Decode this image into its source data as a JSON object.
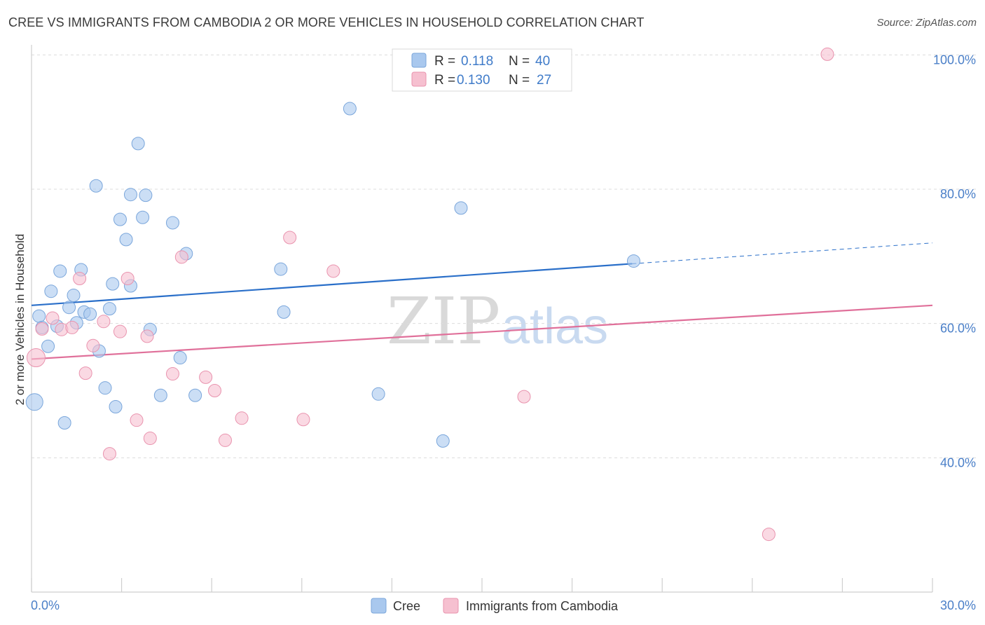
{
  "header": {
    "title": "CREE VS IMMIGRANTS FROM CAMBODIA 2 OR MORE VEHICLES IN HOUSEHOLD CORRELATION CHART",
    "source": "Source: ZipAtlas.com"
  },
  "watermark": {
    "zip": "ZIP",
    "atlas": "atlas"
  },
  "chart_data": {
    "type": "scatter",
    "title": "CREE VS IMMIGRANTS FROM CAMBODIA 2 OR MORE VEHICLES IN HOUSEHOLD CORRELATION CHART",
    "xlabel": "",
    "ylabel": "2 or more Vehicles in Household",
    "xlim": [
      0,
      30
    ],
    "ylim": [
      20,
      101.5
    ],
    "x_tick_labels": [
      {
        "value": 0,
        "label": "0.0%"
      },
      {
        "value": 30,
        "label": "30.0%"
      }
    ],
    "y_tick_labels": [
      {
        "value": 40,
        "label": "40.0%"
      },
      {
        "value": 60,
        "label": "60.0%"
      },
      {
        "value": 80,
        "label": "80.0%"
      },
      {
        "value": 100,
        "label": "100.0%"
      }
    ],
    "y_gridlines": [
      40,
      60,
      80,
      100
    ],
    "x_minor_ticks": [
      0,
      3,
      6,
      9,
      12,
      15,
      18,
      21,
      24,
      27,
      30
    ],
    "grid": true,
    "legend": {
      "placement": "top-center",
      "entries": [
        {
          "series": "Cree",
          "r_label": "R =",
          "r_value": "0.118",
          "n_label": "N =",
          "n_value": "40"
        },
        {
          "series": "Immigrants from Cambodia",
          "r_label": "R =",
          "r_value": "0.130",
          "n_label": "N =",
          "n_value": "27"
        }
      ]
    },
    "series": [
      {
        "name": "Cree",
        "color": "#a9c8ee",
        "edge": "#7aa6db",
        "line_color": "#2a6fc9",
        "trend": {
          "x0": 0,
          "y0": 62.7,
          "x1": 20,
          "y1": 68.9,
          "dash_to_x": 30,
          "dash_to_y": 72.0
        },
        "points": [
          [
            0.1,
            48.3,
            12
          ],
          [
            0.25,
            61.1,
            9
          ],
          [
            0.35,
            59.4,
            9
          ],
          [
            0.55,
            56.6,
            9
          ],
          [
            0.65,
            64.8,
            9
          ],
          [
            0.85,
            59.6,
            9
          ],
          [
            0.95,
            67.8,
            9
          ],
          [
            1.1,
            45.2,
            9
          ],
          [
            1.25,
            62.4,
            9
          ],
          [
            1.4,
            64.2,
            9
          ],
          [
            1.5,
            60.1,
            9
          ],
          [
            1.65,
            68.0,
            9
          ],
          [
            1.75,
            61.7,
            9
          ],
          [
            1.95,
            61.4,
            9
          ],
          [
            2.15,
            80.5,
            9
          ],
          [
            2.25,
            55.9,
            9
          ],
          [
            2.45,
            50.4,
            9
          ],
          [
            2.6,
            62.2,
            9
          ],
          [
            2.7,
            65.9,
            9
          ],
          [
            2.8,
            47.6,
            9
          ],
          [
            2.95,
            75.5,
            9
          ],
          [
            3.15,
            72.5,
            9
          ],
          [
            3.3,
            79.2,
            9
          ],
          [
            3.3,
            65.6,
            9
          ],
          [
            3.55,
            86.8,
            9
          ],
          [
            3.7,
            75.8,
            9
          ],
          [
            3.8,
            79.1,
            9
          ],
          [
            3.95,
            59.1,
            9
          ],
          [
            4.3,
            49.3,
            9
          ],
          [
            4.7,
            75.0,
            9
          ],
          [
            4.95,
            54.9,
            9
          ],
          [
            5.15,
            70.4,
            9
          ],
          [
            5.45,
            49.3,
            9
          ],
          [
            8.3,
            68.1,
            9
          ],
          [
            8.4,
            61.7,
            9
          ],
          [
            10.6,
            92.0,
            9
          ],
          [
            11.55,
            49.5,
            9
          ],
          [
            13.7,
            42.5,
            9
          ],
          [
            14.3,
            77.2,
            9
          ],
          [
            20.05,
            69.3,
            9
          ]
        ]
      },
      {
        "name": "Immigrants from Cambodia",
        "color": "#f6c0d0",
        "edge": "#e993ae",
        "line_color": "#e0709a",
        "trend": {
          "x0": 0,
          "y0": 54.7,
          "x1": 30,
          "y1": 62.7
        },
        "points": [
          [
            0.15,
            54.9,
            13
          ],
          [
            0.35,
            59.2,
            9
          ],
          [
            0.7,
            60.8,
            9
          ],
          [
            1.0,
            59.1,
            9
          ],
          [
            1.35,
            59.4,
            9
          ],
          [
            1.6,
            66.7,
            9
          ],
          [
            1.8,
            52.6,
            9
          ],
          [
            2.05,
            56.7,
            9
          ],
          [
            2.4,
            60.3,
            9
          ],
          [
            2.6,
            40.6,
            9
          ],
          [
            2.95,
            58.8,
            9
          ],
          [
            3.2,
            66.7,
            9
          ],
          [
            3.5,
            45.6,
            9
          ],
          [
            3.85,
            58.1,
            9
          ],
          [
            3.95,
            42.9,
            9
          ],
          [
            4.7,
            52.5,
            9
          ],
          [
            5.0,
            69.9,
            9
          ],
          [
            5.8,
            52.0,
            9
          ],
          [
            6.1,
            50.0,
            9
          ],
          [
            6.45,
            42.6,
            9
          ],
          [
            7.0,
            45.9,
            9
          ],
          [
            8.6,
            72.8,
            9
          ],
          [
            9.05,
            45.7,
            9
          ],
          [
            10.05,
            67.8,
            9
          ],
          [
            16.4,
            49.1,
            9
          ],
          [
            24.55,
            28.6,
            9
          ],
          [
            26.5,
            100.1,
            9
          ]
        ]
      }
    ]
  }
}
